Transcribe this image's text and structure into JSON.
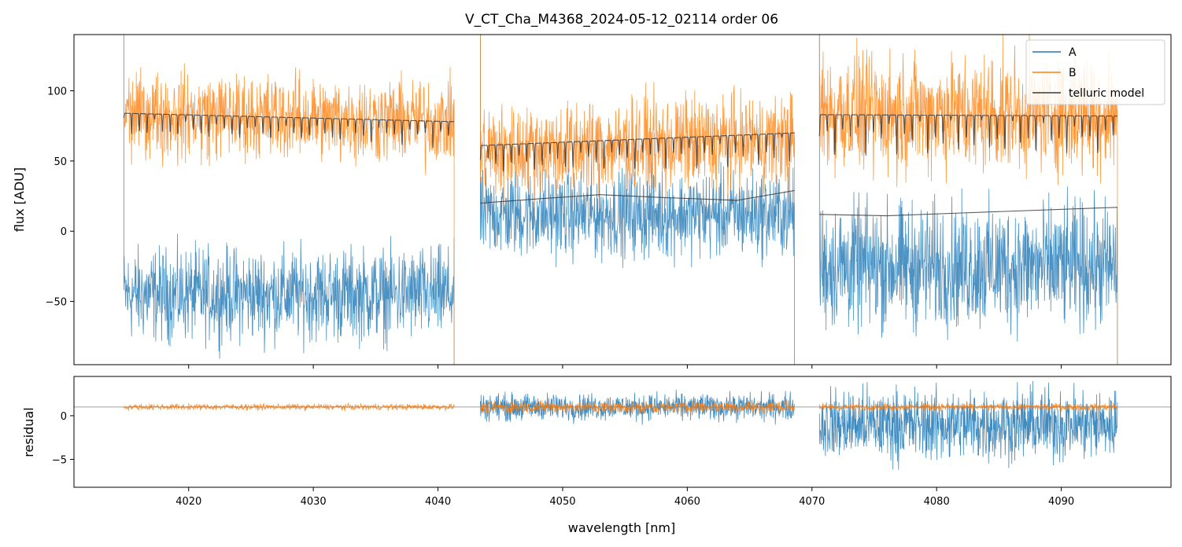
{
  "colors": {
    "A": "#1f77b4",
    "B": "#ff7f0e",
    "telluric": "#3a3a3a",
    "refline": "#808080"
  },
  "chart_data": {
    "type": "line",
    "title": "V_CT_Cha_M4368_2024-05-12_02114  order 06",
    "xlabel": "wavelength [nm]",
    "xlim": [
      4010.8,
      4098.8
    ],
    "x_ticks": [
      4020,
      4030,
      4040,
      4050,
      4060,
      4070,
      4080,
      4090
    ],
    "x_tick_labels": [
      "4020",
      "4030",
      "4040",
      "4050",
      "4060",
      "4070",
      "4080",
      "4090"
    ],
    "legend_position": "top-right",
    "legend": [
      "A",
      "B",
      "telluric model"
    ],
    "segments": [
      {
        "x_start": 4014.8,
        "x_end": 4041.3
      },
      {
        "x_start": 4043.4,
        "x_end": 4068.6
      },
      {
        "x_start": 4070.6,
        "x_end": 4094.5
      }
    ],
    "flux_panel": {
      "ylabel": "flux [ADU]",
      "ylim": [
        -95,
        140
      ],
      "y_ticks": [
        -50,
        0,
        50,
        100
      ],
      "y_tick_labels": [
        "−50",
        "0",
        "50",
        "100"
      ],
      "series": [
        {
          "name": "A",
          "segment_means": [
            -45,
            12,
            -25
          ],
          "segment_noise": [
            28,
            26,
            38
          ]
        },
        {
          "name": "B",
          "segment_means": [
            83,
            70,
            90
          ],
          "segment_noise": [
            25,
            28,
            35
          ]
        },
        {
          "name": "telluric model",
          "segment_continuum": [
            [
              84,
              78
            ],
            [
              61,
              70
            ],
            [
              83,
              82
            ]
          ],
          "segment_line_depth": [
            20,
            25,
            30
          ],
          "scaled_continuum_points": [
            [
              [
                4043.4,
                20
              ],
              [
                4048,
                23
              ],
              [
                4053,
                26
              ],
              [
                4058,
                24
              ],
              [
                4064,
                22
              ],
              [
                4068.6,
                29
              ]
            ],
            [
              [
                4070.6,
                12
              ],
              [
                4076,
                11
              ],
              [
                4082,
                13
              ],
              [
                4094.5,
                17
              ]
            ]
          ]
        }
      ]
    },
    "residual_panel": {
      "ylabel": "residual",
      "ylim": [
        -8.2,
        4.5
      ],
      "y_ticks": [
        -5,
        0
      ],
      "y_tick_labels": [
        "−5",
        "0"
      ],
      "reference_line_y": 1,
      "series": [
        {
          "name": "A",
          "segment_means": [
            null,
            1,
            -1
          ],
          "segment_noise": [
            null,
            1.3,
            3.5
          ]
        },
        {
          "name": "B",
          "segment_means": [
            1,
            1,
            1
          ],
          "segment_noise": [
            0.3,
            0.6,
            0.35
          ]
        }
      ]
    }
  }
}
